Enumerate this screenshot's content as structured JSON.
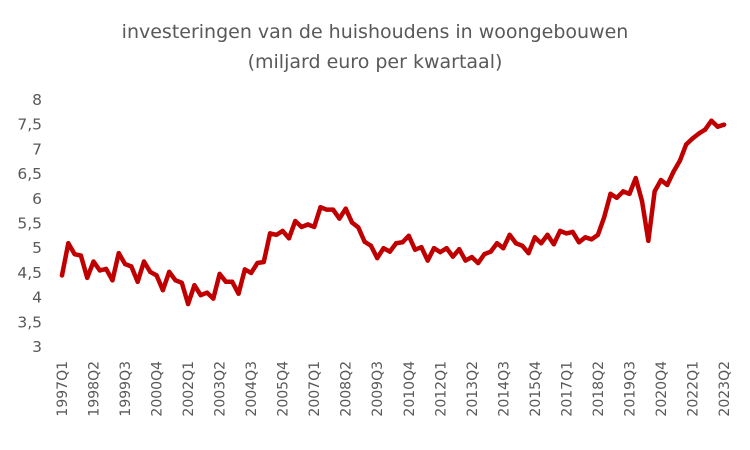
{
  "chart_data": {
    "type": "line",
    "title_lines": [
      "investeringen van de huishoudens in woongebouwen",
      "(miljard euro per kwartaal)"
    ],
    "xlabel": "",
    "ylabel": "",
    "ylim": [
      3,
      8
    ],
    "y_ticks": [
      "3",
      "3,5",
      "4",
      "4,5",
      "5",
      "5,5",
      "6",
      "6,5",
      "7",
      "7,5",
      "8"
    ],
    "x_tick_labels": [
      {
        "index": 0,
        "label": "1997Q1"
      },
      {
        "index": 5,
        "label": "1998Q2"
      },
      {
        "index": 10,
        "label": "1999Q3"
      },
      {
        "index": 15,
        "label": "2000Q4"
      },
      {
        "index": 20,
        "label": "2002Q1"
      },
      {
        "index": 25,
        "label": "2003Q2"
      },
      {
        "index": 30,
        "label": "2004Q3"
      },
      {
        "index": 35,
        "label": "2005Q4"
      },
      {
        "index": 40,
        "label": "2007Q1"
      },
      {
        "index": 45,
        "label": "2008Q2"
      },
      {
        "index": 50,
        "label": "2009Q3"
      },
      {
        "index": 55,
        "label": "2010Q4"
      },
      {
        "index": 60,
        "label": "2012Q1"
      },
      {
        "index": 65,
        "label": "2013Q2"
      },
      {
        "index": 70,
        "label": "2014Q3"
      },
      {
        "index": 75,
        "label": "2015Q4"
      },
      {
        "index": 80,
        "label": "2017Q1"
      },
      {
        "index": 85,
        "label": "2018Q2"
      },
      {
        "index": 90,
        "label": "2019Q3"
      },
      {
        "index": 95,
        "label": "2020Q4"
      },
      {
        "index": 100,
        "label": "2022Q1"
      },
      {
        "index": 105,
        "label": "2023Q2"
      }
    ],
    "grid": false,
    "line_color": "#c00000",
    "series": [
      {
        "values": [
          4.45,
          5.1,
          4.88,
          4.85,
          4.4,
          4.73,
          4.55,
          4.58,
          4.35,
          4.9,
          4.68,
          4.63,
          4.32,
          4.73,
          4.52,
          4.45,
          4.15,
          4.52,
          4.35,
          4.3,
          3.87,
          4.25,
          4.05,
          4.1,
          3.98,
          4.48,
          4.32,
          4.32,
          4.08,
          4.57,
          4.5,
          4.7,
          4.72,
          5.3,
          5.27,
          5.35,
          5.2,
          5.55,
          5.43,
          5.48,
          5.43,
          5.83,
          5.78,
          5.78,
          5.6,
          5.8,
          5.52,
          5.42,
          5.13,
          5.05,
          4.8,
          5.0,
          4.93,
          5.1,
          5.12,
          5.25,
          4.97,
          5.02,
          4.75,
          5.0,
          4.92,
          5.0,
          4.83,
          4.98,
          4.75,
          4.82,
          4.7,
          4.88,
          4.93,
          5.1,
          5.0,
          5.27,
          5.1,
          5.05,
          4.9,
          5.22,
          5.1,
          5.27,
          5.08,
          5.35,
          5.3,
          5.33,
          5.12,
          5.22,
          5.18,
          5.27,
          5.63,
          6.1,
          6.02,
          6.15,
          6.1,
          6.42,
          5.95,
          5.15,
          6.15,
          6.38,
          6.28,
          6.55,
          6.77,
          7.1,
          7.22,
          7.32,
          7.4,
          7.58,
          7.46,
          7.5
        ]
      }
    ]
  }
}
